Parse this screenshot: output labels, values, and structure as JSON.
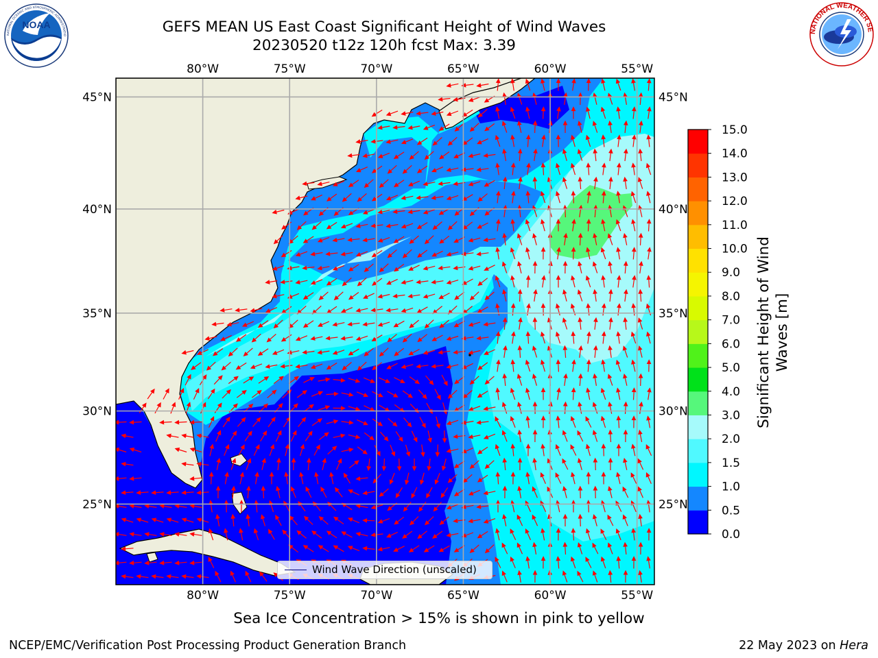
{
  "title": {
    "line1": "GEFS MEAN US East Coast Significant Height of Wind Waves",
    "line2": "20230520 t12z 120h fcst   Max: 3.39"
  },
  "logos": {
    "left_text": "NOAA",
    "left_ring_text": "NATIONAL OCEANIC AND ATMOSPHERIC ADMINISTRATION · U.S. DEPARTMENT OF COMMERCE",
    "right_ring_text": "NATIONAL WEATHER SERVICE"
  },
  "map": {
    "lon_range": [
      -85,
      -54
    ],
    "lat_range": [
      20.5,
      45.8
    ],
    "lon_ticks": [
      {
        "value": -80,
        "label": "80°W"
      },
      {
        "value": -75,
        "label": "75°W"
      },
      {
        "value": -70,
        "label": "70°W"
      },
      {
        "value": -65,
        "label": "65°W"
      },
      {
        "value": -60,
        "label": "60°W"
      },
      {
        "value": -55,
        "label": "55°W"
      }
    ],
    "lat_ticks": [
      {
        "value": 45,
        "label": "45°N"
      },
      {
        "value": 40,
        "label": "40°N"
      },
      {
        "value": 35,
        "label": "35°N"
      },
      {
        "value": 30,
        "label": "30°N"
      },
      {
        "value": 25,
        "label": "25°N"
      }
    ],
    "grid": true,
    "ocean_base_color": "#1487ff",
    "land_color": "#eeeedd",
    "arrow_color": "#ff0000",
    "max_value": 3.39
  },
  "colorbar": {
    "label": "Significant Height of Wind Waves [m]",
    "ticks": [
      "0.0",
      "0.5",
      "1.0",
      "1.5",
      "2.0",
      "3.0",
      "4.0",
      "5.0",
      "6.0",
      "7.0",
      "8.0",
      "9.0",
      "10.0",
      "11.0",
      "12.0",
      "13.0",
      "14.0",
      "15.0"
    ],
    "colors": [
      "#0000ff",
      "#1487ff",
      "#00f7ff",
      "#50f9ff",
      "#a6fafb",
      "#56f77b",
      "#00e11a",
      "#50f21a",
      "#b7f81a",
      "#d8fa00",
      "#f5f500",
      "#ffe100",
      "#ffbd00",
      "#ff9000",
      "#ff6300",
      "#ff3400",
      "#ff0000"
    ]
  },
  "legend": {
    "label": "Wind Wave Direction (unscaled)"
  },
  "ice_note": "Sea Ice Concentration > 15% is shown in pink to yellow",
  "footer": {
    "left": "NCEP/EMC/Verification Post Processing Product Generation Branch",
    "right_prefix": "22 May 2023 on ",
    "right_machine": "Hera"
  }
}
